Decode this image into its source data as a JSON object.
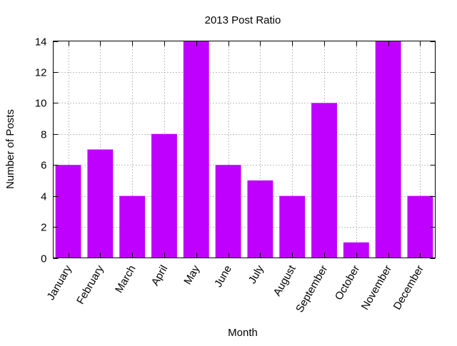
{
  "chart_data": {
    "type": "bar",
    "title": "2013 Post Ratio",
    "xlabel": "Month",
    "ylabel": "Number of Posts",
    "categories": [
      "January",
      "February",
      "March",
      "April",
      "May",
      "June",
      "July",
      "August",
      "September",
      "October",
      "November",
      "December"
    ],
    "values": [
      6,
      7,
      4,
      8,
      14,
      6,
      5,
      4,
      10,
      1,
      14,
      4
    ],
    "ylim": [
      0,
      14
    ],
    "yticks": [
      "0",
      "2",
      "4",
      "6",
      "8",
      "10",
      "12",
      "14"
    ],
    "grid": true,
    "legend": "none",
    "bar_color": "#bf00ff"
  }
}
